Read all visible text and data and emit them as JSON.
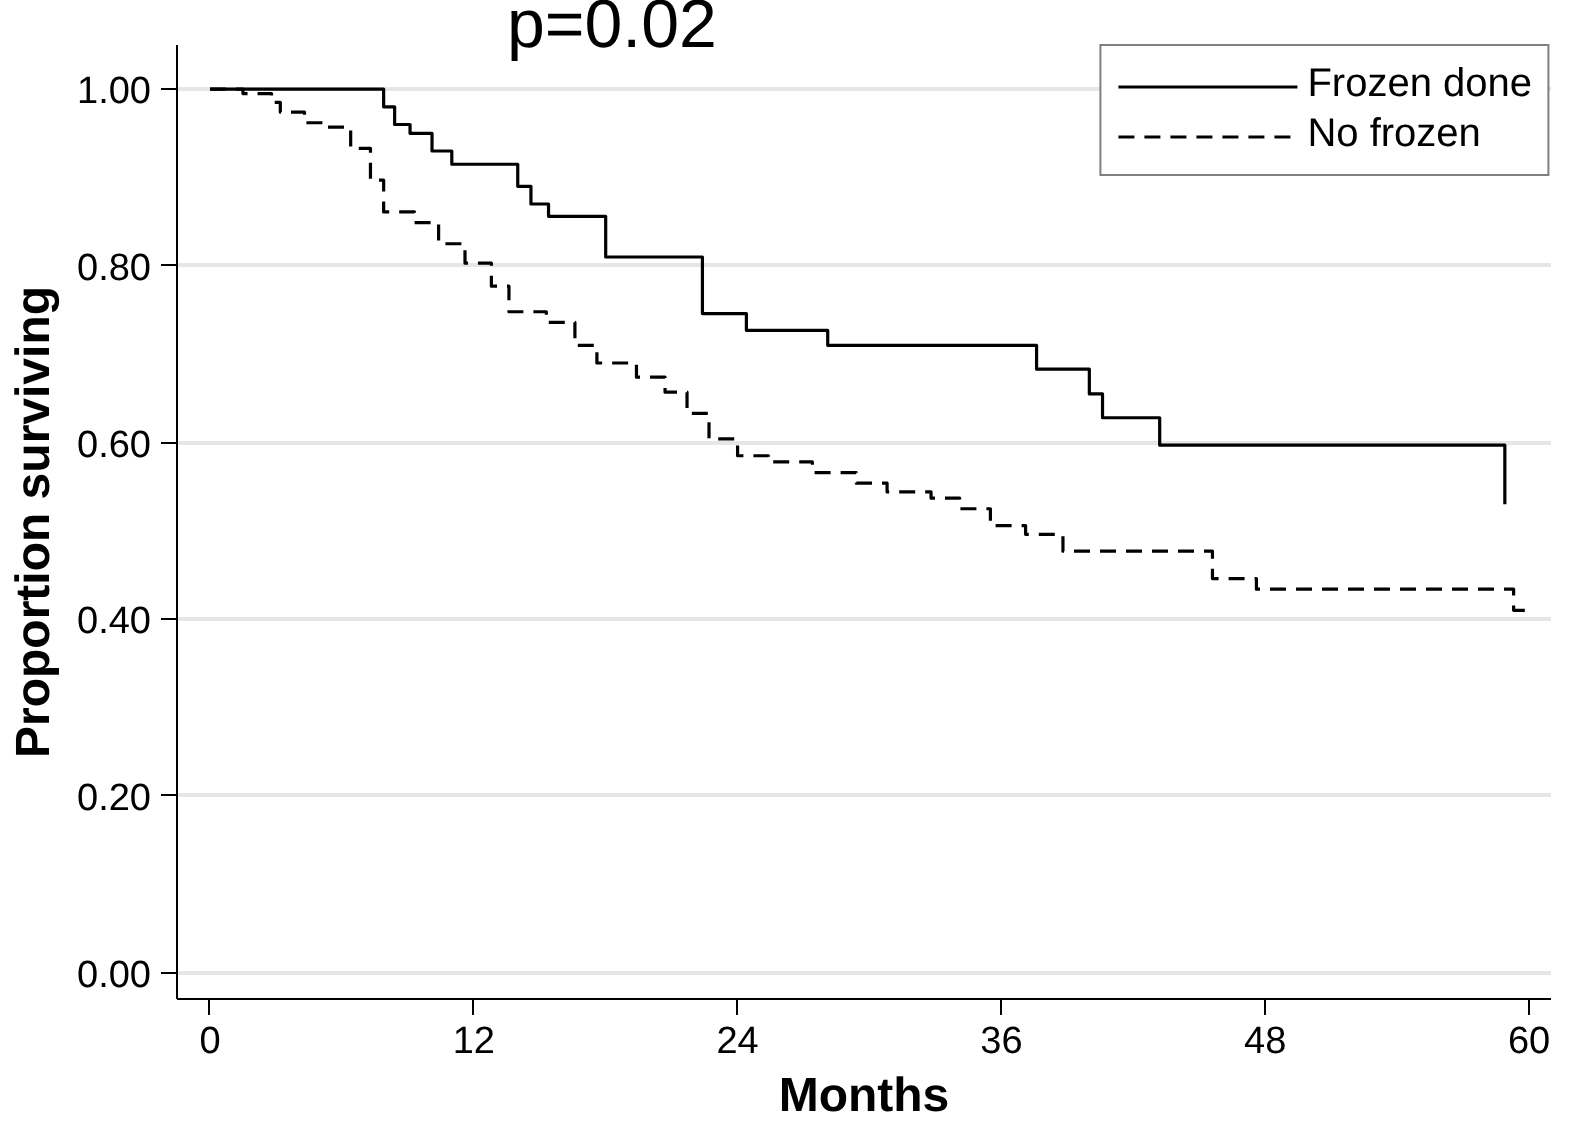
{
  "chart_data": {
    "type": "step",
    "xlabel": "Months",
    "ylabel": "Proportion surviving",
    "annotations": [
      "p=0.02"
    ],
    "xlim": [
      -1.5,
      61
    ],
    "ylim": [
      -0.03,
      1.05
    ],
    "xticks": [
      0,
      12,
      24,
      36,
      48,
      60
    ],
    "yticks": [
      {
        "value": 0,
        "label": "0.00"
      },
      {
        "value": 0.2,
        "label": "0.20"
      },
      {
        "value": 0.4,
        "label": "0.40"
      },
      {
        "value": 0.6,
        "label": "0.60"
      },
      {
        "value": 0.8,
        "label": "0.80"
      },
      {
        "value": 1,
        "label": "1.00"
      }
    ],
    "grid": "y",
    "legend": "top right",
    "series": [
      {
        "name": "Frozen done",
        "color": "#000000",
        "line_style": "solid",
        "x": [
          0,
          7.9,
          8.4,
          9.1,
          10.1,
          11,
          14,
          14.6,
          15.4,
          18,
          22.4,
          24.4,
          28.1,
          37.6,
          40,
          40.6,
          43.2,
          58.9
        ],
        "values": [
          1.0,
          0.98,
          0.96,
          0.95,
          0.93,
          0.915,
          0.89,
          0.87,
          0.856,
          0.81,
          0.746,
          0.727,
          0.71,
          0.683,
          0.655,
          0.628,
          0.597,
          0.53
        ]
      },
      {
        "name": "No frozen",
        "color": "#000000",
        "line_style": "dashed",
        "x": [
          0,
          1.5,
          2.8,
          3.2,
          4.3,
          5.2,
          6.4,
          7.3,
          7.9,
          9.3,
          10.4,
          11.6,
          12.8,
          13.6,
          15.3,
          16.6,
          17.6,
          19.4,
          20.7,
          21.7,
          22.7,
          24,
          25.4,
          27.4,
          29.4,
          30.8,
          32.8,
          34.1,
          35.5,
          37.1,
          38.8,
          45.6,
          47.6,
          59.3,
          60
        ],
        "values": [
          1.0,
          0.995,
          0.985,
          0.974,
          0.962,
          0.957,
          0.933,
          0.897,
          0.861,
          0.849,
          0.825,
          0.803,
          0.777,
          0.748,
          0.736,
          0.71,
          0.69,
          0.674,
          0.657,
          0.633,
          0.604,
          0.585,
          0.578,
          0.566,
          0.554,
          0.544,
          0.537,
          0.525,
          0.506,
          0.496,
          0.477,
          0.446,
          0.434,
          0.41,
          0.41
        ]
      }
    ]
  }
}
